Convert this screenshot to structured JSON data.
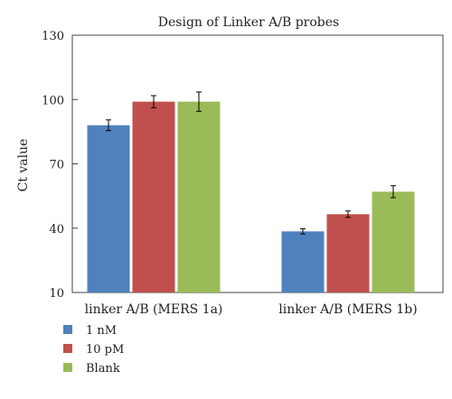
{
  "chart_data": {
    "type": "bar",
    "title": "Design of Linker A/B probes",
    "xlabel": "",
    "ylabel": "Ct value",
    "ylim": [
      10,
      130
    ],
    "yticks": [
      10,
      40,
      70,
      100,
      130
    ],
    "categories": [
      "linker A/B (MERS 1a)",
      "linker A/B (MERS 1b)"
    ],
    "series": [
      {
        "name": "1 nM",
        "color": "#4F81BD",
        "values": [
          88,
          38.5
        ],
        "errors": [
          2.5,
          1.2
        ]
      },
      {
        "name": "10 pM",
        "color": "#C0504D",
        "values": [
          99,
          46.5
        ],
        "errors": [
          2.8,
          1.5
        ]
      },
      {
        "name": "Blank",
        "color": "#9BBB59",
        "values": [
          99,
          57
        ],
        "errors": [
          4.5,
          2.8
        ]
      }
    ],
    "grid": false,
    "legend_position": "bottom-left"
  }
}
